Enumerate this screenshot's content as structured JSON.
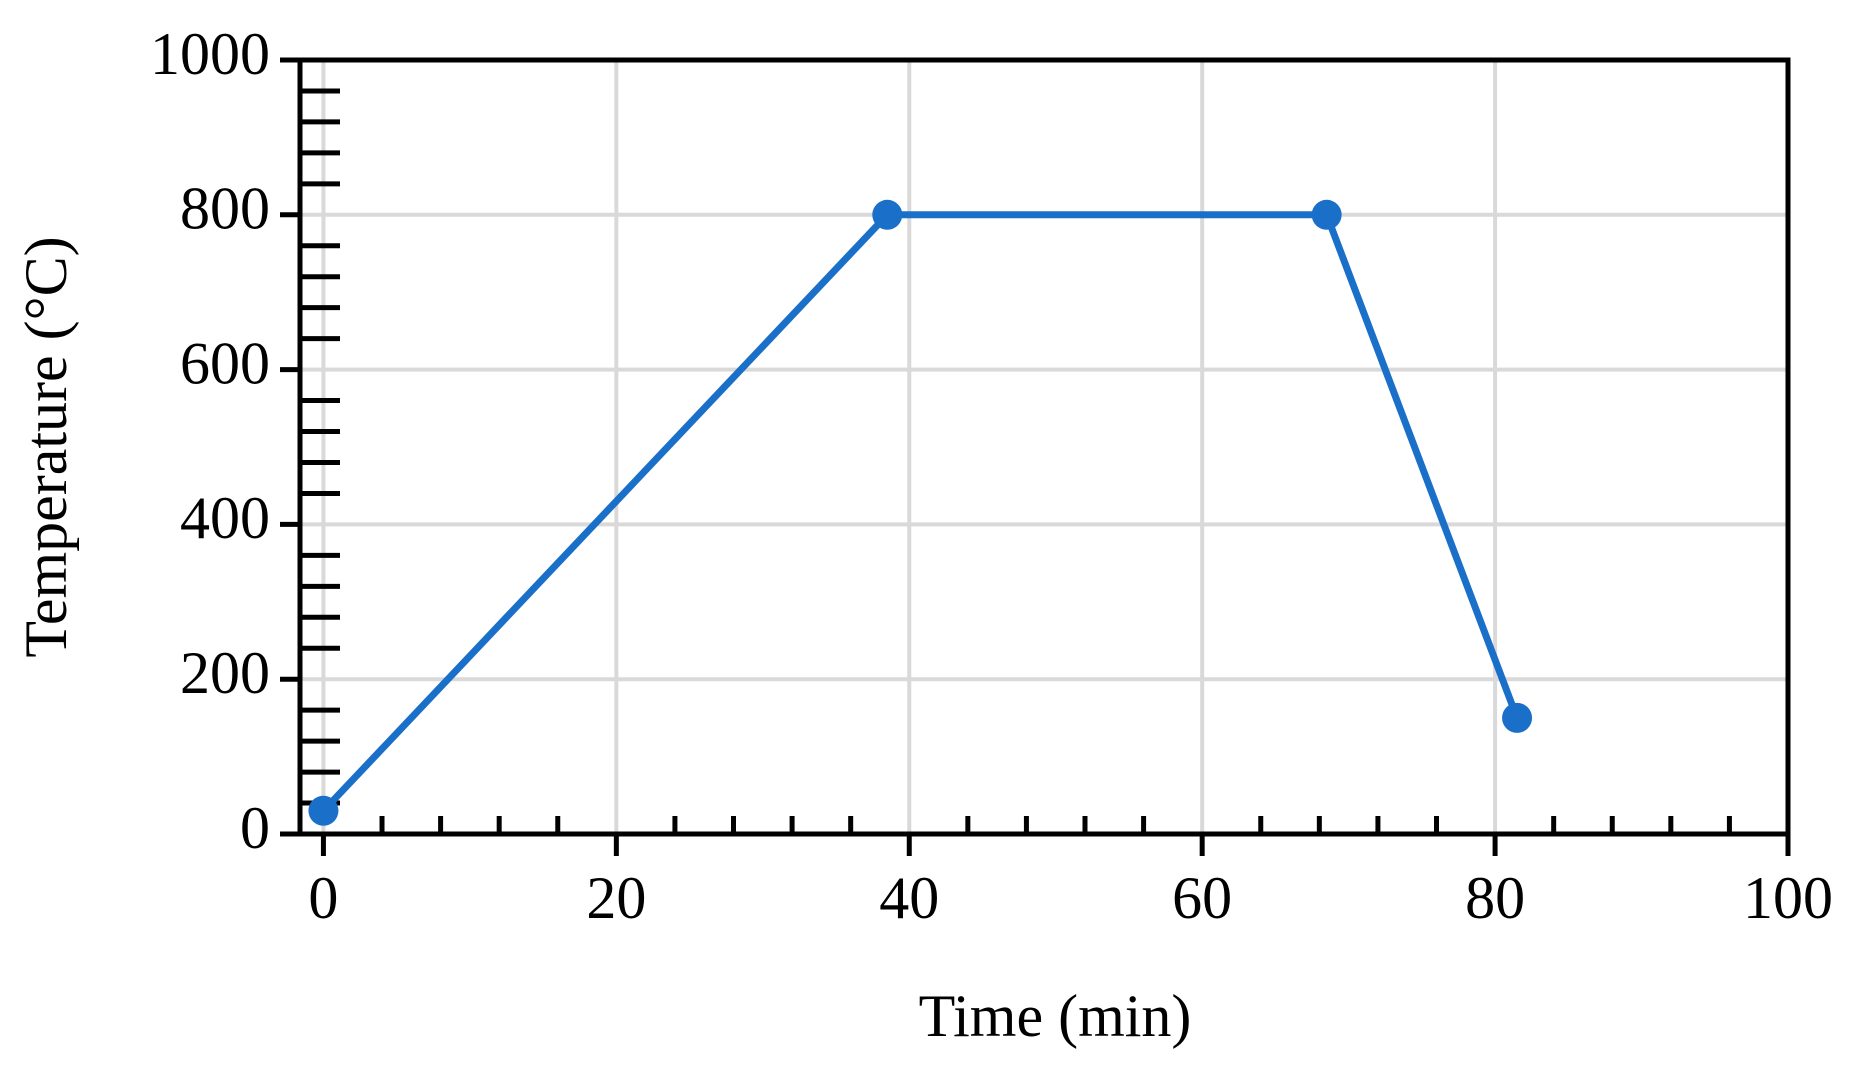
{
  "chart_data": {
    "type": "line",
    "x_label": "Time (min)",
    "y_label": "Temperature (°C)",
    "x": [
      0,
      38.5,
      68.5,
      81.5
    ],
    "series": [
      {
        "color": "#1a70c8",
        "values": [
          30,
          800,
          800,
          150
        ]
      }
    ],
    "xlim": [
      -1.6,
      100
    ],
    "ylim": [
      0,
      1000
    ],
    "xticks": [
      0,
      20,
      40,
      60,
      80,
      100
    ],
    "yticks": [
      0,
      200,
      400,
      600,
      800,
      1000
    ],
    "xminorticks": [
      4,
      8,
      12,
      16,
      24,
      28,
      32,
      36,
      44,
      48,
      52,
      56,
      64,
      68,
      72,
      76,
      84,
      88,
      92,
      96
    ],
    "yminorticks": [
      40,
      80,
      120,
      160,
      240,
      280,
      320,
      360,
      440,
      480,
      520,
      560,
      640,
      680,
      720,
      760,
      840,
      880,
      920,
      960
    ],
    "grid": true,
    "grid_color": "#d9d9d9"
  }
}
